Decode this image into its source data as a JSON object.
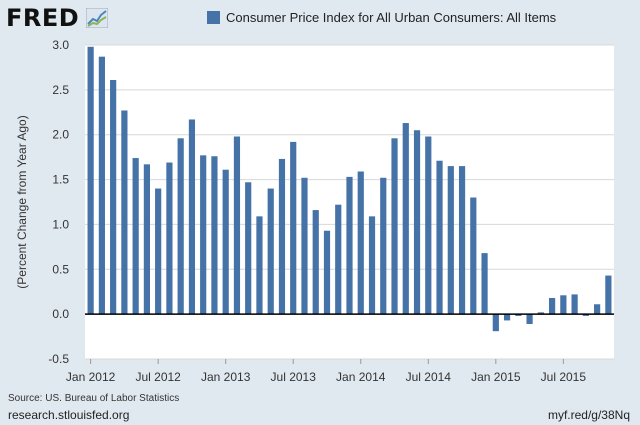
{
  "header": {
    "logo_text": "FRED",
    "logo_graph_icon": "line-chart-icon"
  },
  "footer": {
    "source": "Source: US. Bureau of Labor Statistics",
    "site": "research.stlouisfed.org",
    "shortlink": "myf.red/g/38Nq"
  },
  "colors": {
    "series": "#4572a7",
    "background": "#e1e9f0",
    "plot_background": "#ffffff"
  },
  "chart_data": {
    "type": "bar",
    "ylabel": "(Percent Change from Year Ago)",
    "ylim": [
      -0.5,
      3.0
    ],
    "yticks": [
      -0.5,
      0.0,
      0.5,
      1.0,
      1.5,
      2.0,
      2.5,
      3.0
    ],
    "ytick_labels": [
      "-0.5",
      "0.0",
      "0.5",
      "1.0",
      "1.5",
      "2.0",
      "2.5",
      "3.0"
    ],
    "xtick_labels": [
      "Jan 2012",
      "Jul 2012",
      "Jan 2013",
      "Jul 2013",
      "Jan 2014",
      "Jul 2014",
      "Jan 2015",
      "Jul 2015"
    ],
    "xtick_dates": [
      "2012-01",
      "2012-07",
      "2013-01",
      "2013-07",
      "2014-01",
      "2014-07",
      "2015-01",
      "2015-07"
    ],
    "grid": true,
    "legend_position": "top",
    "series": [
      {
        "name": "Consumer Price Index for All Urban Consumers: All Items",
        "x": [
          "2012-01",
          "2012-02",
          "2012-03",
          "2012-04",
          "2012-05",
          "2012-06",
          "2012-07",
          "2012-08",
          "2012-09",
          "2012-10",
          "2012-11",
          "2012-12",
          "2013-01",
          "2013-02",
          "2013-03",
          "2013-04",
          "2013-05",
          "2013-06",
          "2013-07",
          "2013-08",
          "2013-09",
          "2013-10",
          "2013-11",
          "2013-12",
          "2014-01",
          "2014-02",
          "2014-03",
          "2014-04",
          "2014-05",
          "2014-06",
          "2014-07",
          "2014-08",
          "2014-09",
          "2014-10",
          "2014-11",
          "2014-12",
          "2015-01",
          "2015-02",
          "2015-03",
          "2015-04",
          "2015-05",
          "2015-06",
          "2015-07",
          "2015-08",
          "2015-09",
          "2015-10",
          "2015-11"
        ],
        "values": [
          2.98,
          2.87,
          2.61,
          2.27,
          1.74,
          1.67,
          1.4,
          1.69,
          1.96,
          2.17,
          1.77,
          1.76,
          1.61,
          1.98,
          1.47,
          1.09,
          1.4,
          1.73,
          1.92,
          1.52,
          1.16,
          0.93,
          1.22,
          1.53,
          1.59,
          1.09,
          1.52,
          1.96,
          2.13,
          2.05,
          1.98,
          1.71,
          1.65,
          1.65,
          1.3,
          0.68,
          -0.19,
          -0.07,
          -0.02,
          -0.11,
          0.02,
          0.18,
          0.21,
          0.22,
          -0.02,
          0.11,
          0.43
        ]
      }
    ]
  }
}
